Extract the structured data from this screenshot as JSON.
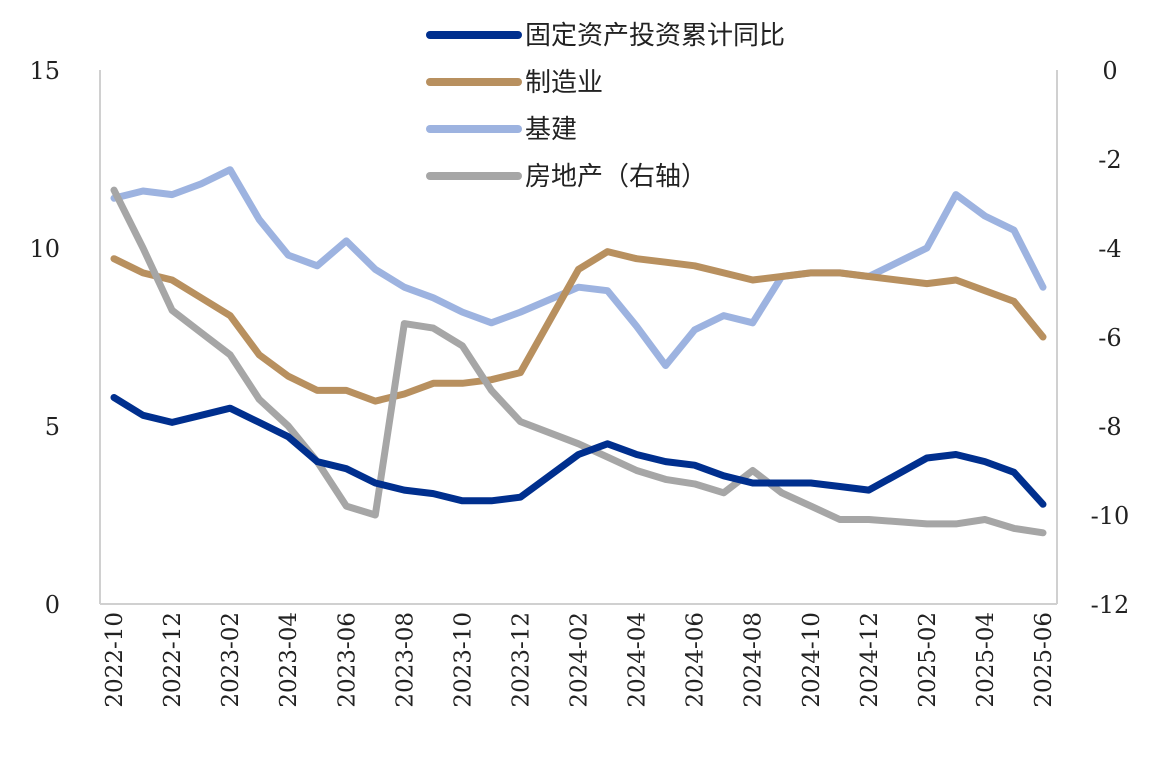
{
  "chart_data": {
    "type": "line",
    "title": "",
    "categories": [
      "2022-10",
      "2022-11",
      "2022-12",
      "2023-01",
      "2023-02",
      "2023-03",
      "2023-04",
      "2023-05",
      "2023-06",
      "2023-07",
      "2023-08",
      "2023-09",
      "2023-10",
      "2023-11",
      "2023-12",
      "2024-01",
      "2024-02",
      "2024-03",
      "2024-04",
      "2024-05",
      "2024-06",
      "2024-07",
      "2024-08",
      "2024-09",
      "2024-10",
      "2024-11",
      "2024-12",
      "2025-01",
      "2025-02",
      "2025-03",
      "2025-04",
      "2025-05",
      "2025-06"
    ],
    "x_tick_labels": [
      "2022-10",
      "2022-12",
      "2023-02",
      "2023-04",
      "2023-06",
      "2023-08",
      "2023-10",
      "2023-12",
      "2024-02",
      "2024-04",
      "2024-06",
      "2024-08",
      "2024-10",
      "2024-12",
      "2025-02",
      "2025-04",
      "2025-06"
    ],
    "left_axis": {
      "ylim": [
        0,
        15
      ],
      "ticks": [
        0,
        5,
        10,
        15
      ],
      "tick_labels": [
        "0",
        "5",
        "10",
        "15"
      ]
    },
    "right_axis": {
      "ylim": [
        -12,
        0
      ],
      "ticks": [
        -12,
        -10,
        -8,
        -6,
        -4,
        -2,
        0
      ],
      "tick_labels": [
        "-12",
        "-10",
        "-8",
        "-6",
        "-4",
        "-2",
        "0"
      ]
    },
    "legend_position": "top-center",
    "series": [
      {
        "name": "固定资产投资累计同比",
        "axis": "left",
        "color": "#002f8e",
        "values": [
          5.8,
          5.3,
          5.1,
          5.3,
          5.5,
          5.1,
          4.7,
          4.0,
          3.8,
          3.4,
          3.2,
          3.1,
          2.9,
          2.9,
          3.0,
          null,
          4.2,
          4.5,
          4.2,
          4.0,
          3.9,
          3.6,
          3.4,
          3.4,
          3.4,
          3.3,
          3.2,
          null,
          4.1,
          4.2,
          4.0,
          3.7,
          2.8
        ]
      },
      {
        "name": "制造业",
        "axis": "left",
        "color": "#b8905f",
        "values": [
          9.7,
          9.3,
          9.1,
          8.6,
          8.1,
          7.0,
          6.4,
          6.0,
          6.0,
          5.7,
          5.9,
          6.2,
          6.2,
          6.3,
          6.5,
          null,
          9.4,
          9.9,
          9.7,
          9.6,
          9.5,
          9.3,
          9.1,
          9.2,
          9.3,
          9.3,
          9.2,
          null,
          9.0,
          9.1,
          8.8,
          8.5,
          7.5
        ]
      },
      {
        "name": "基建",
        "axis": "left",
        "color": "#9db3e0",
        "values": [
          11.4,
          11.6,
          11.5,
          11.8,
          12.2,
          10.8,
          9.8,
          9.5,
          10.2,
          9.4,
          8.9,
          8.6,
          8.2,
          7.9,
          8.2,
          null,
          8.9,
          8.8,
          7.8,
          6.7,
          7.7,
          8.1,
          7.9,
          9.2,
          9.3,
          9.3,
          9.2,
          null,
          10.0,
          11.5,
          10.9,
          10.5,
          8.9
        ]
      },
      {
        "name": "房地产（右轴）",
        "axis": "right",
        "color": "#a6a6a6",
        "values": [
          -2.7,
          -4.0,
          -5.4,
          -5.9,
          -6.4,
          -7.4,
          -8.0,
          -8.8,
          -9.8,
          -10.0,
          -5.7,
          -5.8,
          -6.2,
          -7.2,
          -7.9,
          null,
          -8.4,
          -8.7,
          -9.0,
          -9.2,
          -9.3,
          -9.5,
          -9.0,
          -9.5,
          -9.8,
          -10.1,
          -10.1,
          null,
          -10.2,
          -10.2,
          -10.1,
          -10.3,
          -10.4
        ]
      }
    ]
  }
}
